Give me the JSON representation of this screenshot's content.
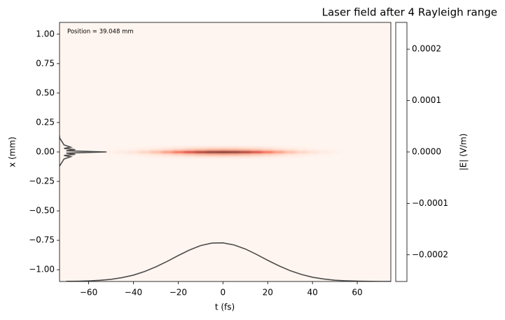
{
  "chart_data": {
    "type": "heatmap",
    "title": "Laser field after 4 Rayleigh range",
    "annotation": "Position = 39.048 mm",
    "x_label": "t (fs)",
    "y_label": "x (mm)",
    "colorbar_label": "|E| (V/m)",
    "xlim": [
      -73,
      75
    ],
    "ylim": [
      -1.1,
      1.1
    ],
    "xticks": [
      {
        "value": -60,
        "label": "−60"
      },
      {
        "value": -40,
        "label": "−40"
      },
      {
        "value": -20,
        "label": "−20"
      },
      0,
      20,
      40,
      60
    ],
    "yticks": [
      {
        "value": 1,
        "label": "1.00"
      },
      {
        "value": 0.75,
        "label": "0.75"
      },
      {
        "value": 0.5,
        "label": "0.50"
      },
      {
        "value": 0.25,
        "label": "0.25"
      },
      {
        "value": 0,
        "label": "0.00"
      },
      {
        "value": -0.25,
        "label": "−0.25"
      },
      {
        "value": -0.5,
        "label": "−0.50"
      },
      {
        "value": -0.75,
        "label": "−0.75"
      },
      {
        "value": -1,
        "label": "−1.00"
      }
    ],
    "clim": [
      -0.000252,
      0.000252
    ],
    "cticks": [
      {
        "value": 0.0002,
        "label": "0.0002"
      },
      {
        "value": 0.0001,
        "label": "0.0001"
      },
      {
        "value": 0,
        "label": "0.0000"
      },
      {
        "value": -0.0001,
        "label": "−0.0001"
      },
      {
        "value": -0.0002,
        "label": "−0.0002"
      }
    ],
    "heatmap": {
      "colormap": [
        "#fff5f0",
        "#fcbba1",
        "#fb6a4a",
        "#cb181d",
        "#67000d"
      ],
      "vmin": 0,
      "vmax": 0.00025,
      "cell_t": 5,
      "cell_x": 0.02,
      "t": [
        -50,
        -45,
        -40,
        -35,
        -30,
        -25,
        -20,
        -15,
        -10,
        -5,
        0,
        5,
        10,
        15,
        20,
        25,
        30,
        35,
        40,
        45,
        50
      ],
      "x": [
        -0.04,
        -0.02,
        0,
        0.02,
        0.04
      ],
      "values": [
        [
          4e-07,
          9e-07,
          1.6e-06,
          2.9e-06,
          4.8e-06,
          7.3e-06,
          1.03e-05,
          1.36e-05,
          1.65e-05,
          1.85e-05,
          1.92e-05,
          1.85e-05,
          1.65e-05,
          1.36e-05,
          1.03e-05,
          7.3e-06,
          4.8e-06,
          2.9e-06,
          1.6e-06,
          9e-07,
          4e-07
        ],
        [
          1.5e-06,
          3.3e-06,
          6e-06,
          1.08e-05,
          1.8e-05,
          2.73e-05,
          3.87e-05,
          5.1e-05,
          6.18e-05,
          6.93e-05,
          7.2e-05,
          6.93e-05,
          6.18e-05,
          5.1e-05,
          3.87e-05,
          2.73e-05,
          1.8e-05,
          1.08e-05,
          6e-06,
          3.3e-06,
          1.5e-06
        ],
        [
          5e-06,
          1.1e-05,
          2e-05,
          3.6e-05,
          6e-05,
          9.1e-05,
          0.000129,
          0.00017,
          0.000206,
          0.000231,
          0.00024,
          0.000231,
          0.000206,
          0.00017,
          0.000129,
          9.1e-05,
          6e-05,
          3.6e-05,
          2e-05,
          1.1e-05,
          5e-06
        ],
        [
          1.5e-06,
          3.3e-06,
          6e-06,
          1.08e-05,
          1.8e-05,
          2.73e-05,
          3.87e-05,
          5.1e-05,
          6.18e-05,
          6.93e-05,
          7.2e-05,
          6.93e-05,
          6.18e-05,
          5.1e-05,
          3.87e-05,
          2.73e-05,
          1.8e-05,
          1.08e-05,
          6e-06,
          3.3e-06,
          1.5e-06
        ],
        [
          4e-07,
          9e-07,
          1.6e-06,
          2.9e-06,
          4.8e-06,
          7.3e-06,
          1.03e-05,
          1.36e-05,
          1.65e-05,
          1.85e-05,
          1.92e-05,
          1.85e-05,
          1.65e-05,
          1.36e-05,
          1.03e-05,
          7.3e-06,
          4.8e-06,
          2.9e-06,
          1.6e-06,
          9e-07,
          4e-07
        ]
      ]
    },
    "lateral_profile": {
      "color": "#4d4d4d",
      "x": [
        -0.12,
        -0.09,
        -0.06,
        -0.04,
        -0.03,
        -0.02,
        -0.01,
        0,
        0.01,
        0.02,
        0.03,
        0.04,
        0.06,
        0.09,
        0.12,
        0.14
      ],
      "t": [
        -73,
        -72,
        -71,
        -68,
        -71,
        -66,
        -70,
        -52,
        -70,
        -66,
        -71,
        -68,
        -71,
        -72,
        -73,
        -73
      ]
    },
    "temporal_profile": {
      "color": "#4d4d4d",
      "t": [
        -70,
        -65,
        -60,
        -55,
        -50,
        -45,
        -40,
        -35,
        -30,
        -25,
        -20,
        -15,
        -10,
        -5,
        0,
        5,
        10,
        15,
        20,
        25,
        30,
        35,
        40,
        45,
        50,
        55,
        60,
        65,
        70,
        75
      ],
      "x": [
        -1.099,
        -1.098,
        -1.095,
        -1.09,
        -1.082,
        -1.067,
        -1.046,
        -1.015,
        -0.976,
        -0.93,
        -0.88,
        -0.833,
        -0.795,
        -0.774,
        -0.772,
        -0.79,
        -0.824,
        -0.87,
        -0.92,
        -0.967,
        -1.008,
        -1.04,
        -1.064,
        -1.079,
        -1.089,
        -1.094,
        -1.097,
        -1.099,
        -1.1,
        -1.1
      ]
    }
  }
}
